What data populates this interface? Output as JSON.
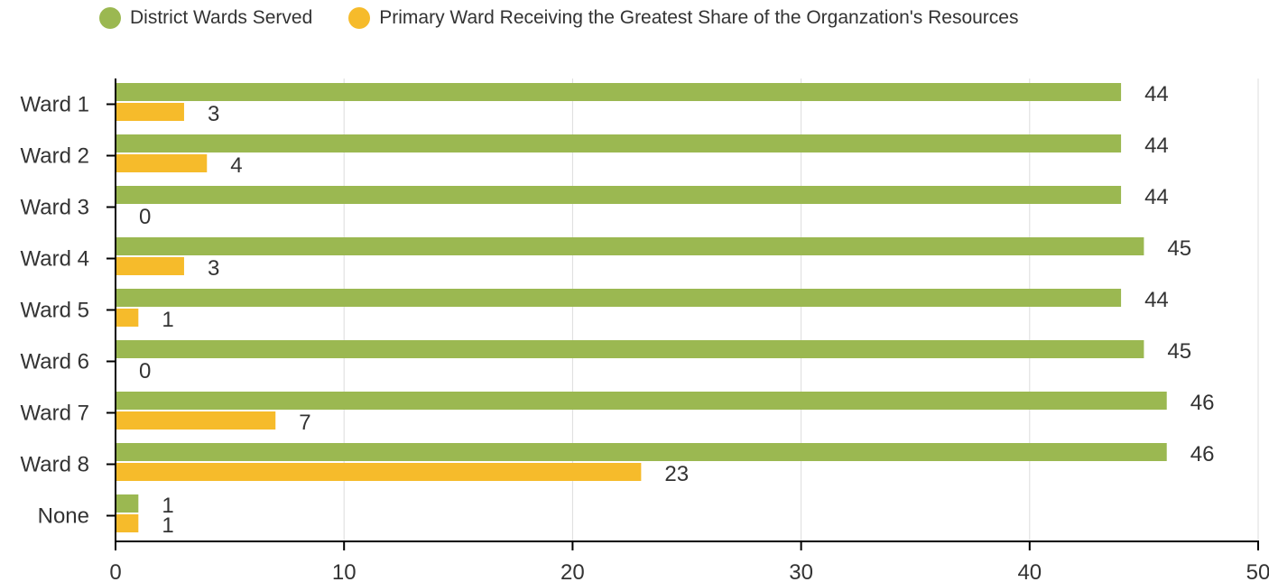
{
  "colors": {
    "series_1": "#9bb851",
    "series_2": "#f6bb2b",
    "grid": "#dddddd",
    "axis": "#000000"
  },
  "legend": {
    "series_1_label": "District Wards Served",
    "series_2_label": "Primary Ward Receiving the Greatest Share of the Organzation's Resources"
  },
  "chart_data": {
    "type": "bar",
    "orientation": "horizontal",
    "categories": [
      "Ward 1",
      "Ward 2",
      "Ward 3",
      "Ward 4",
      "Ward 5",
      "Ward 6",
      "Ward 7",
      "Ward 8",
      "None"
    ],
    "series": [
      {
        "name": "District Wards Served",
        "values": [
          44,
          44,
          44,
          45,
          44,
          45,
          46,
          46,
          1
        ]
      },
      {
        "name": "Primary Ward Receiving the Greatest Share of the Organzation's Resources",
        "values": [
          3,
          4,
          0,
          3,
          1,
          0,
          7,
          23,
          1
        ]
      }
    ],
    "xlim": [
      0,
      50
    ],
    "xticks": [
      0,
      10,
      20,
      30,
      40,
      50
    ],
    "grid": true,
    "legend_position": "top-left",
    "data_labels": true
  }
}
